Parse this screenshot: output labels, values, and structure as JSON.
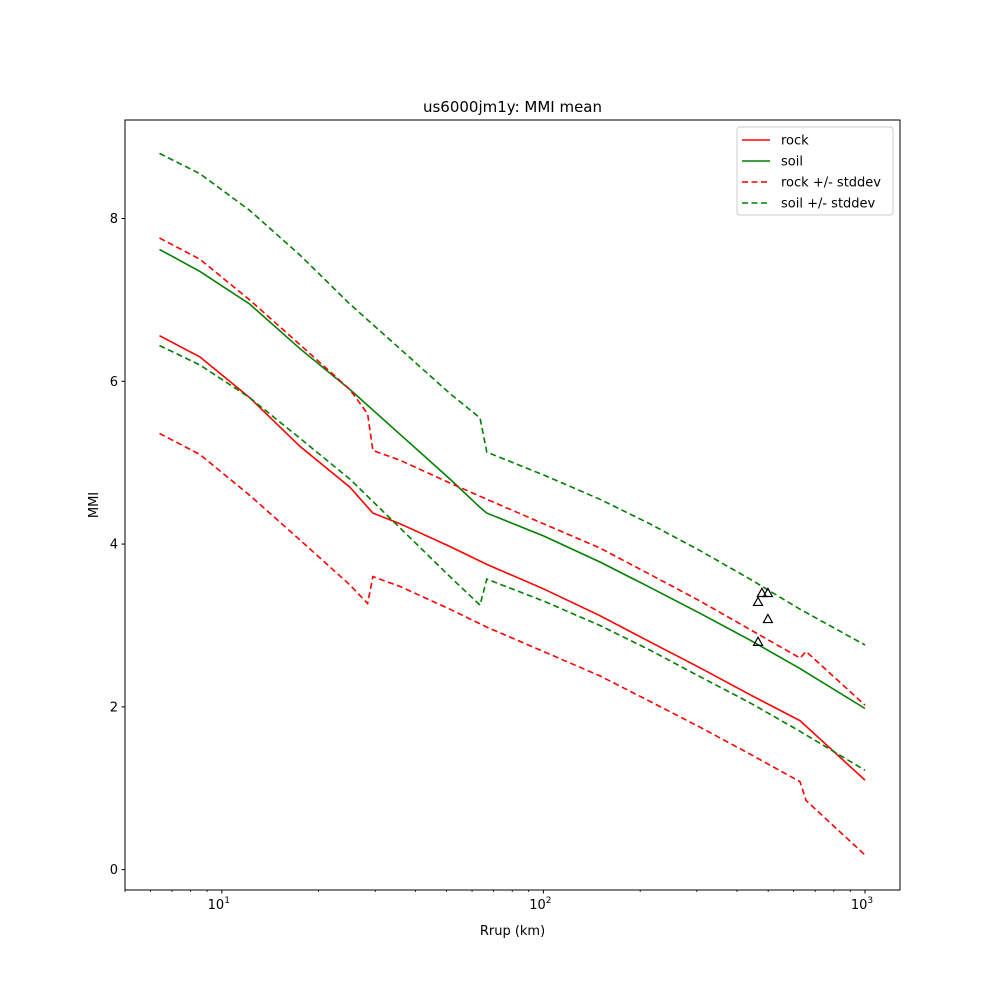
{
  "chart_data": {
    "type": "line",
    "title": "us6000jm1y: MMI mean",
    "xlabel": "Rrup (km)",
    "ylabel": "MMI",
    "xscale": "log",
    "xlim": [
      5.0,
      1285
    ],
    "ylim": [
      -0.25,
      9.21
    ],
    "xticks": [
      {
        "value": 10,
        "base": "10",
        "exp": "1"
      },
      {
        "value": 100,
        "base": "10",
        "exp": "2"
      },
      {
        "value": 1000,
        "base": "10",
        "exp": "3"
      }
    ],
    "yticks": [
      0,
      2,
      4,
      6,
      8
    ],
    "grid": false,
    "legend_position": "top-right",
    "series": [
      {
        "name": "rock",
        "color": "#ff0000",
        "style": "solid",
        "x": [
          6.4,
          8.55,
          12.2,
          17.5,
          25,
          29.5,
          35.8,
          51.2,
          66.7,
          100,
          150,
          214,
          307,
          439,
          628,
          1000
        ],
        "y": [
          6.56,
          6.3,
          5.8,
          5.2,
          4.7,
          4.38,
          4.25,
          3.97,
          3.75,
          3.45,
          3.12,
          2.8,
          2.48,
          2.15,
          1.83,
          1.1
        ]
      },
      {
        "name": "soil",
        "color": "#008000",
        "style": "solid",
        "x": [
          6.4,
          8.55,
          12.2,
          17.5,
          25,
          35.8,
          51.2,
          63.5,
          66.7,
          100,
          150,
          214,
          307,
          439,
          628,
          1000
        ],
        "y": [
          7.62,
          7.35,
          6.95,
          6.4,
          5.9,
          5.35,
          4.8,
          4.45,
          4.38,
          4.1,
          3.78,
          3.47,
          3.15,
          2.82,
          2.47,
          1.98
        ]
      },
      {
        "name": "rock +/- stddev",
        "color": "#ff0000",
        "style": "dashed",
        "x": [
          6.4,
          8.55,
          12.2,
          17.5,
          25,
          28.4,
          29.5,
          35.8,
          51.2,
          66.7,
          100,
          150,
          214,
          307,
          439,
          628,
          656,
          1000
        ],
        "y": [
          7.76,
          7.5,
          7.0,
          6.45,
          5.9,
          5.6,
          5.15,
          5.03,
          4.75,
          4.55,
          4.25,
          3.95,
          3.63,
          3.3,
          2.95,
          2.6,
          2.68,
          2.02
        ]
      },
      {
        "name": "rock +/- stddev",
        "color": "#ff0000",
        "style": "dashed",
        "legend": false,
        "x": [
          6.4,
          8.55,
          12.2,
          17.5,
          25,
          28.4,
          29.5,
          35.8,
          51.2,
          66.7,
          100,
          150,
          214,
          307,
          439,
          628,
          656,
          1000
        ],
        "y": [
          5.36,
          5.1,
          4.6,
          4.05,
          3.5,
          3.27,
          3.6,
          3.48,
          3.2,
          2.98,
          2.68,
          2.38,
          2.07,
          1.75,
          1.42,
          1.08,
          0.85,
          0.18
        ]
      },
      {
        "name": "soil +/- stddev",
        "color": "#008000",
        "style": "dashed",
        "x": [
          6.4,
          8.55,
          12.2,
          17.5,
          25,
          35.8,
          51.2,
          63.5,
          66.7,
          100,
          150,
          214,
          307,
          439,
          628,
          1000
        ],
        "y": [
          8.8,
          8.55,
          8.1,
          7.55,
          6.95,
          6.4,
          5.85,
          5.55,
          5.13,
          4.85,
          4.55,
          4.25,
          3.92,
          3.57,
          3.2,
          2.76
        ]
      },
      {
        "name": "soil +/- stddev",
        "color": "#008000",
        "style": "dashed",
        "legend": false,
        "x": [
          6.4,
          8.55,
          12.2,
          17.5,
          25,
          35.8,
          51.2,
          63.5,
          66.7,
          100,
          150,
          214,
          307,
          439,
          628,
          1000
        ],
        "y": [
          6.44,
          6.2,
          5.8,
          5.3,
          4.8,
          4.2,
          3.6,
          3.25,
          3.57,
          3.3,
          3.0,
          2.7,
          2.37,
          2.05,
          1.7,
          1.22
        ]
      }
    ],
    "observations": {
      "marker": "triangle-open",
      "color": "#000000",
      "x": [
        465,
        478,
        499,
        499,
        465
      ],
      "y": [
        3.29,
        3.4,
        3.4,
        3.08,
        2.8
      ]
    },
    "legend": [
      "rock",
      "soil",
      "rock +/- stddev",
      "soil +/- stddev"
    ]
  }
}
